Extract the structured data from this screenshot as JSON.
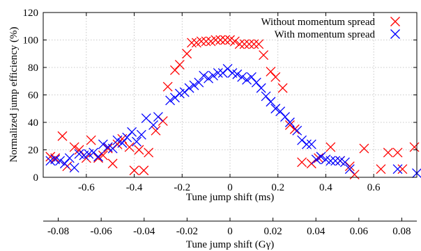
{
  "chart_data": {
    "type": "scatter",
    "xlabel": "Tune jump shift (ms)",
    "ylabel": "Normalized jump efficiency (%)",
    "xlim": [
      -0.78,
      0.78
    ],
    "ylim": [
      0,
      120
    ],
    "x_ticks": [
      "-0.6",
      "-0.4",
      "-0.2",
      "0",
      "0.2",
      "0.4",
      "0.6"
    ],
    "y_ticks": [
      "0",
      "20",
      "40",
      "60",
      "80",
      "100",
      "120"
    ],
    "grid": true,
    "legend_position": "top-right",
    "secondary_x_axis": {
      "label": "Tune jump shift (Gγ)",
      "lim": [
        -0.087,
        0.087
      ],
      "ticks": [
        "-0.08",
        "-0.06",
        "-0.04",
        "-0.02",
        "0",
        "0.02",
        "0.04",
        "0.06",
        "0.08"
      ]
    },
    "series": [
      {
        "name": "Without momentum spread",
        "color": "#ff0000",
        "points": [
          [
            -0.75,
            15
          ],
          [
            -0.73,
            14
          ],
          [
            -0.7,
            30
          ],
          [
            -0.68,
            8
          ],
          [
            -0.65,
            22
          ],
          [
            -0.63,
            20
          ],
          [
            -0.6,
            14
          ],
          [
            -0.58,
            27
          ],
          [
            -0.55,
            14
          ],
          [
            -0.53,
            16
          ],
          [
            -0.51,
            21
          ],
          [
            -0.49,
            10
          ],
          [
            -0.47,
            24
          ],
          [
            -0.45,
            28
          ],
          [
            -0.42,
            22
          ],
          [
            -0.4,
            5
          ],
          [
            -0.38,
            20
          ],
          [
            -0.36,
            5
          ],
          [
            -0.34,
            18
          ],
          [
            -0.31,
            34
          ],
          [
            -0.28,
            41
          ],
          [
            -0.26,
            66
          ],
          [
            -0.23,
            78
          ],
          [
            -0.21,
            82
          ],
          [
            -0.18,
            90
          ],
          [
            -0.16,
            98
          ],
          [
            -0.14,
            98
          ],
          [
            -0.12,
            99
          ],
          [
            -0.1,
            99
          ],
          [
            -0.08,
            99
          ],
          [
            -0.06,
            100
          ],
          [
            -0.04,
            100
          ],
          [
            -0.02,
            100
          ],
          [
            0,
            100
          ],
          [
            0.02,
            99
          ],
          [
            0.04,
            97
          ],
          [
            0.06,
            97
          ],
          [
            0.08,
            97
          ],
          [
            0.1,
            97
          ],
          [
            0.12,
            97
          ],
          [
            0.14,
            89
          ],
          [
            0.17,
            77
          ],
          [
            0.19,
            73
          ],
          [
            0.22,
            65
          ],
          [
            0.25,
            38
          ],
          [
            0.27,
            35
          ],
          [
            0.3,
            11
          ],
          [
            0.34,
            10
          ],
          [
            0.37,
            14
          ],
          [
            0.42,
            22
          ],
          [
            0.46,
            12
          ],
          [
            0.5,
            8
          ],
          [
            0.52,
            2
          ],
          [
            0.56,
            21
          ],
          [
            0.63,
            6
          ],
          [
            0.66,
            18
          ],
          [
            0.7,
            18
          ],
          [
            0.72,
            6
          ],
          [
            0.77,
            22
          ]
        ]
      },
      {
        "name": "With momentum spread",
        "color": "#0000ff",
        "points": [
          [
            -0.75,
            12
          ],
          [
            -0.73,
            13
          ],
          [
            -0.71,
            12
          ],
          [
            -0.69,
            10
          ],
          [
            -0.67,
            14
          ],
          [
            -0.65,
            7
          ],
          [
            -0.63,
            17
          ],
          [
            -0.61,
            16
          ],
          [
            -0.59,
            17
          ],
          [
            -0.57,
            18
          ],
          [
            -0.55,
            15
          ],
          [
            -0.53,
            24
          ],
          [
            -0.51,
            22
          ],
          [
            -0.49,
            21
          ],
          [
            -0.47,
            27
          ],
          [
            -0.45,
            25
          ],
          [
            -0.43,
            29
          ],
          [
            -0.41,
            33
          ],
          [
            -0.39,
            26
          ],
          [
            -0.37,
            31
          ],
          [
            -0.35,
            43
          ],
          [
            -0.32,
            38
          ],
          [
            -0.3,
            44
          ],
          [
            -0.25,
            56
          ],
          [
            -0.23,
            58
          ],
          [
            -0.21,
            61
          ],
          [
            -0.19,
            62
          ],
          [
            -0.17,
            65
          ],
          [
            -0.15,
            67
          ],
          [
            -0.13,
            69
          ],
          [
            -0.11,
            74
          ],
          [
            -0.09,
            72
          ],
          [
            -0.07,
            74
          ],
          [
            -0.05,
            76
          ],
          [
            -0.03,
            76
          ],
          [
            -0.01,
            79
          ],
          [
            0.01,
            76
          ],
          [
            0.03,
            75
          ],
          [
            0.05,
            73
          ],
          [
            0.07,
            71
          ],
          [
            0.09,
            73
          ],
          [
            0.11,
            69
          ],
          [
            0.13,
            65
          ],
          [
            0.15,
            59
          ],
          [
            0.17,
            55
          ],
          [
            0.19,
            50
          ],
          [
            0.21,
            48
          ],
          [
            0.23,
            44
          ],
          [
            0.25,
            40
          ],
          [
            0.28,
            34
          ],
          [
            0.3,
            27
          ],
          [
            0.32,
            24
          ],
          [
            0.34,
            24
          ],
          [
            0.36,
            13
          ],
          [
            0.38,
            15
          ],
          [
            0.4,
            13
          ],
          [
            0.42,
            12
          ],
          [
            0.44,
            12
          ],
          [
            0.46,
            12
          ],
          [
            0.48,
            11
          ],
          [
            0.5,
            6
          ],
          [
            0.7,
            6
          ],
          [
            0.78,
            3
          ]
        ]
      }
    ]
  }
}
